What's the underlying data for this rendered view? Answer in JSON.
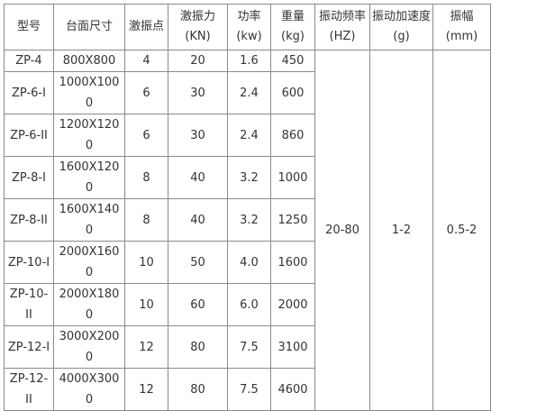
{
  "headers": [
    "型号",
    "台面尺寸",
    "激振点",
    "激振力(KN)",
    "功率(kw)",
    "重量(kg)",
    "振动频率(HZ)",
    "振动加速度(g)",
    "振幅(mm)"
  ],
  "rows": [
    [
      "ZP-4",
      "800X800",
      "4",
      "20",
      "1.6",
      "450"
    ],
    [
      "ZP-6-I",
      "1000X1000",
      "6",
      "30",
      "2.4",
      "600"
    ],
    [
      "ZP-6-II",
      "1200X1200",
      "6",
      "30",
      "2.4",
      "860"
    ],
    [
      "ZP-8-I",
      "1600X1200",
      "8",
      "40",
      "3.2",
      "1000"
    ],
    [
      "ZP-8-II",
      "1600X1400",
      "8",
      "40",
      "3.2",
      "1250"
    ],
    [
      "ZP-10-I",
      "2000X1600",
      "10",
      "50",
      "4.0",
      "1600"
    ],
    [
      "ZP-10-II",
      "2000X1800",
      "10",
      "60",
      "6.0",
      "2000"
    ],
    [
      "ZP-12-I",
      "3000X2000",
      "12",
      "80",
      "7.5",
      "3100"
    ],
    [
      "ZP-12-II",
      "4000X3000",
      "12",
      "80",
      "7.5",
      "4600"
    ]
  ],
  "shared": {
    "frequency": "20-80",
    "acceleration": "1-2",
    "amplitude": "0.5-2"
  }
}
